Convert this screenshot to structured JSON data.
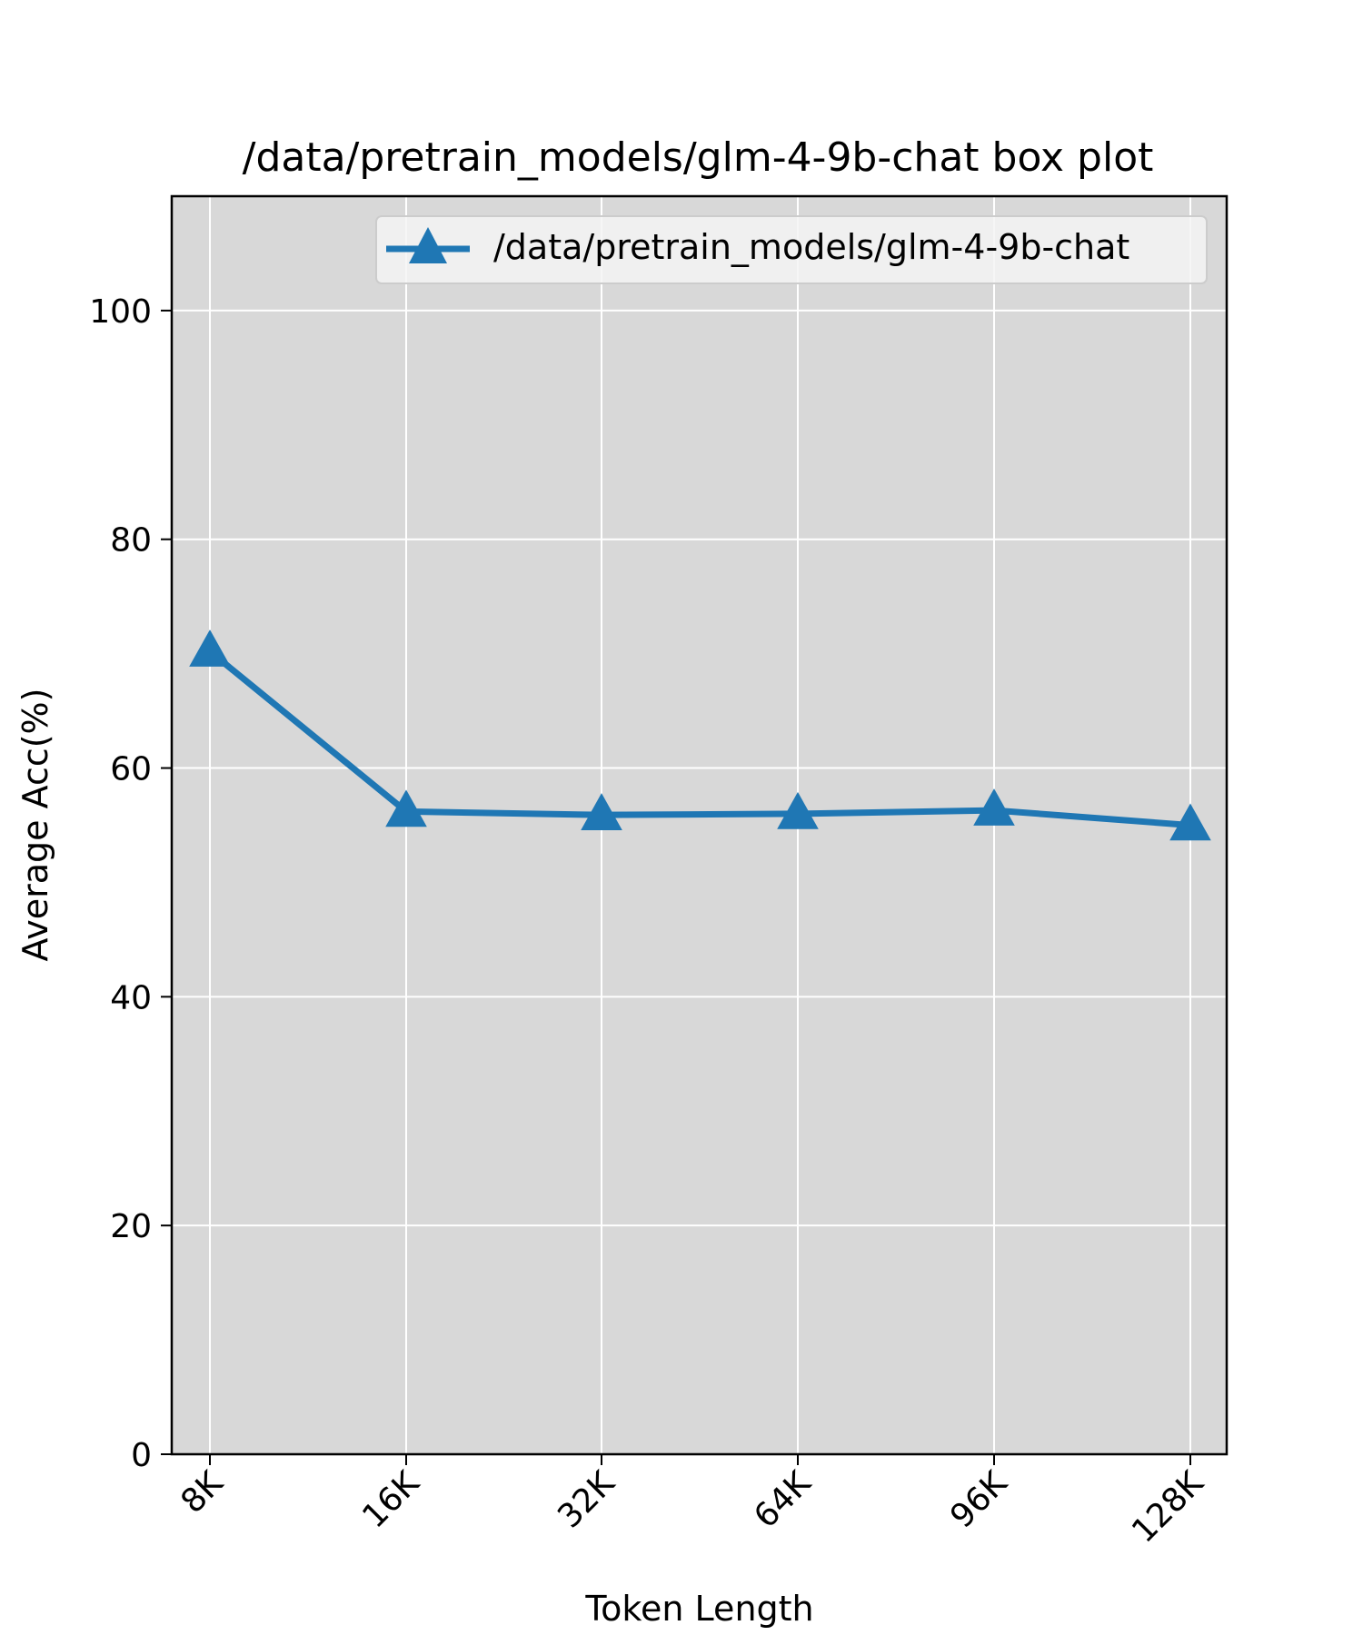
{
  "chart_data": {
    "type": "line",
    "title": "/data/pretrain_models/glm-4-9b-chat box plot",
    "xlabel": "Token Length",
    "ylabel": "Average Acc(%)",
    "categories": [
      "8K",
      "16K",
      "32K",
      "64K",
      "96K",
      "128K"
    ],
    "series": [
      {
        "name": "/data/pretrain_models/glm-4-9b-chat",
        "values": [
          70.2,
          56.2,
          55.9,
          56.0,
          56.3,
          55.0
        ],
        "color": "#1f77b4",
        "marker": "triangle-up"
      }
    ],
    "ylim": [
      0,
      110
    ],
    "yticks": [
      0,
      20,
      40,
      60,
      80,
      100
    ],
    "grid": true,
    "legend_position": "top-right",
    "background_color": "#d8d8d8",
    "grid_color": "#ffffff"
  }
}
